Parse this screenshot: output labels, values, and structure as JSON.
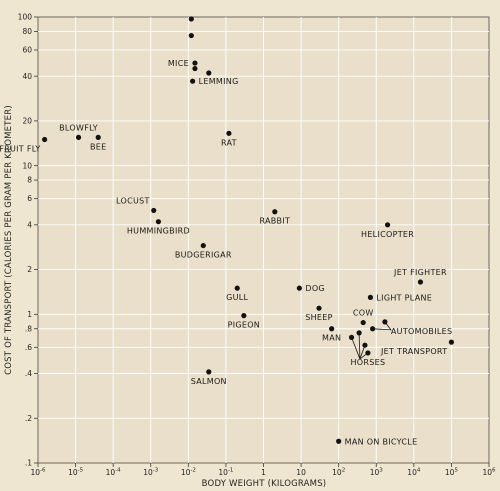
{
  "chart_data": {
    "type": "scatter",
    "xlabel": "BODY WEIGHT (KILOGRAMS)",
    "ylabel": "COST OF TRANSPORT (CALORIES PER GRAM PER KILOMETER)",
    "x_scale": "log",
    "y_scale": "log",
    "xlim": [
      1e-06,
      1000000
    ],
    "ylim": [
      0.1,
      100
    ],
    "grid": true,
    "x_ticks": [
      {
        "value": 1e-06,
        "base": "10",
        "exp": "-6"
      },
      {
        "value": 1e-05,
        "base": "10",
        "exp": "-5"
      },
      {
        "value": 0.0001,
        "base": "10",
        "exp": "-4"
      },
      {
        "value": 0.001,
        "base": "10",
        "exp": "-3"
      },
      {
        "value": 0.01,
        "base": "10",
        "exp": "-2"
      },
      {
        "value": 0.1,
        "base": "10",
        "exp": "-1"
      },
      {
        "value": 1,
        "base": "1",
        "exp": ""
      },
      {
        "value": 10,
        "base": "10",
        "exp": ""
      },
      {
        "value": 100,
        "base": "10",
        "exp": "2"
      },
      {
        "value": 1000,
        "base": "10",
        "exp": "3"
      },
      {
        "value": 10000,
        "base": "10",
        "exp": "4"
      },
      {
        "value": 100000,
        "base": "10",
        "exp": "5"
      },
      {
        "value": 1000000,
        "base": "10",
        "exp": "6"
      }
    ],
    "y_ticks": [
      {
        "value": 0.1,
        "label": ".1"
      },
      {
        "value": 0.2,
        "label": ".2"
      },
      {
        "value": 0.4,
        "label": ".4"
      },
      {
        "value": 0.6,
        "label": ".6"
      },
      {
        "value": 0.8,
        "label": ".8"
      },
      {
        "value": 1,
        "label": "1"
      },
      {
        "value": 2,
        "label": "2"
      },
      {
        "value": 4,
        "label": "4"
      },
      {
        "value": 6,
        "label": "6"
      },
      {
        "value": 8,
        "label": "8"
      },
      {
        "value": 10,
        "label": "10"
      },
      {
        "value": 20,
        "label": "20"
      },
      {
        "value": 40,
        "label": "40"
      },
      {
        "value": 60,
        "label": "60"
      },
      {
        "value": 80,
        "label": "80"
      },
      {
        "value": 100,
        "label": "100"
      }
    ],
    "points": [
      {
        "x": 1.5e-06,
        "y": 15,
        "label": "FRUIT FLY",
        "label_pos": "below-left"
      },
      {
        "x": 1.2e-05,
        "y": 15.5,
        "label": "BLOWFLY",
        "label_pos": "above"
      },
      {
        "x": 4e-05,
        "y": 15.5,
        "label": "BEE",
        "label_pos": "below"
      },
      {
        "x": 0.0012,
        "y": 5,
        "label": "LOCUST",
        "label_pos": "above-left"
      },
      {
        "x": 0.0016,
        "y": 4.2,
        "label": "HUMMINGBIRD",
        "label_pos": "below"
      },
      {
        "x": 0.012,
        "y": 97,
        "label": "",
        "label_pos": ""
      },
      {
        "x": 0.012,
        "y": 75,
        "label": "",
        "label_pos": ""
      },
      {
        "x": 0.015,
        "y": 49,
        "label": "MICE",
        "label_pos": "left"
      },
      {
        "x": 0.015,
        "y": 45,
        "label": "",
        "label_pos": ""
      },
      {
        "x": 0.035,
        "y": 42,
        "label": "",
        "label_pos": ""
      },
      {
        "x": 0.013,
        "y": 37,
        "label": "LEMMING",
        "label_pos": "right"
      },
      {
        "x": 0.12,
        "y": 16.5,
        "label": "RAT",
        "label_pos": "below"
      },
      {
        "x": 0.025,
        "y": 2.9,
        "label": "BUDGERIGAR",
        "label_pos": "below"
      },
      {
        "x": 2,
        "y": 4.9,
        "label": "RABBIT",
        "label_pos": "below"
      },
      {
        "x": 0.2,
        "y": 1.5,
        "label": "GULL",
        "label_pos": "below"
      },
      {
        "x": 0.3,
        "y": 0.98,
        "label": "PIGEON",
        "label_pos": "below"
      },
      {
        "x": 0.035,
        "y": 0.41,
        "label": "SALMON",
        "label_pos": "below"
      },
      {
        "x": 9,
        "y": 1.5,
        "label": "DOG",
        "label_pos": "right"
      },
      {
        "x": 30,
        "y": 1.1,
        "label": "SHEEP",
        "label_pos": "below"
      },
      {
        "x": 65,
        "y": 0.8,
        "label": "MAN",
        "label_pos": "below"
      },
      {
        "x": 700,
        "y": 1.3,
        "label": "LIGHT PLANE",
        "label_pos": "right"
      },
      {
        "x": 15000,
        "y": 1.65,
        "label": "JET FIGHTER",
        "label_pos": "above"
      },
      {
        "x": 2000,
        "y": 4,
        "label": "HELICOPTER",
        "label_pos": "below"
      },
      {
        "x": 100000,
        "y": 0.65,
        "label": "JET TRANSPORT",
        "label_pos": "below-left"
      },
      {
        "x": 100,
        "y": 0.14,
        "label": "MAN ON BICYCLE",
        "label_pos": "right"
      },
      {
        "x": 450,
        "y": 0.88,
        "label": "COW",
        "label_pos": "above"
      },
      {
        "x": 800,
        "y": 0.8,
        "label": "",
        "label_pos": ""
      },
      {
        "x": 1700,
        "y": 0.89,
        "label": "AUTOMOBILES",
        "label_pos": "below-right"
      },
      {
        "x": 220,
        "y": 0.7,
        "label": "",
        "label_pos": ""
      },
      {
        "x": 350,
        "y": 0.75,
        "label": "",
        "label_pos": ""
      },
      {
        "x": 500,
        "y": 0.62,
        "label": "",
        "label_pos": ""
      },
      {
        "x": 600,
        "y": 0.55,
        "label": "HORSES",
        "label_pos": "below"
      }
    ]
  }
}
